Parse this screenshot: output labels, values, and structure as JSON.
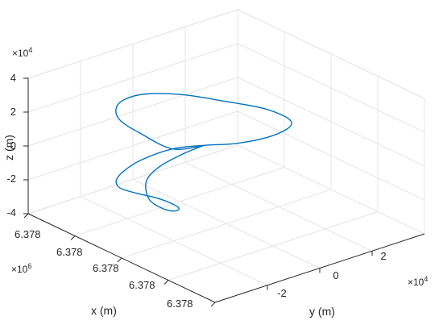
{
  "chart_data": {
    "type": "line",
    "view": "3d",
    "grid": true,
    "xlabel": "x (m)",
    "ylabel": "y (m)",
    "zlabel": "z (m)",
    "x_ticks": [
      "6.378",
      "6.378",
      "6.378",
      "6.378",
      "6.378"
    ],
    "y_ticks": [
      "-2",
      "0",
      "2"
    ],
    "z_ticks": [
      "-4",
      "-2",
      "0",
      "2",
      "4"
    ],
    "x_multiplier": {
      "base": "×10",
      "exp": "6"
    },
    "y_multiplier": {
      "base": "×10",
      "exp": "4"
    },
    "z_multiplier": {
      "base": "×10",
      "exp": "4"
    },
    "ylim": [
      -40000,
      40000
    ],
    "zlim": [
      -40000,
      40000
    ],
    "series": [
      {
        "color": "#0072BD",
        "path_yz": [
          [
            0,
            0
          ],
          [
            -12000,
            4000
          ],
          [
            -24000,
            19000
          ],
          [
            -32000,
            31000
          ],
          [
            -33500,
            39000
          ],
          [
            -30000,
            42500
          ],
          [
            -22000,
            41500
          ],
          [
            -8000,
            34000
          ],
          [
            8000,
            22000
          ],
          [
            22000,
            11000
          ],
          [
            30500,
            2000
          ],
          [
            33500,
            -3500
          ],
          [
            31500,
            -6500
          ],
          [
            24000,
            -7500
          ],
          [
            12000,
            -5000
          ],
          [
            0,
            0
          ],
          [
            -12000,
            4000
          ],
          [
            -24000,
            3500
          ],
          [
            -31000,
            0
          ],
          [
            -33500,
            -4000
          ],
          [
            -32000,
            -9000
          ],
          [
            -26000,
            -15000
          ],
          [
            -18000,
            -22000
          ],
          [
            -12000,
            -28500
          ],
          [
            -9500,
            -32500
          ],
          [
            -11500,
            -33000
          ],
          [
            -16000,
            -29000
          ],
          [
            -21000,
            -21000
          ],
          [
            -22000,
            -10000
          ],
          [
            -17000,
            -4000
          ],
          [
            -8000,
            -1000
          ],
          [
            0,
            0
          ]
        ]
      }
    ]
  }
}
